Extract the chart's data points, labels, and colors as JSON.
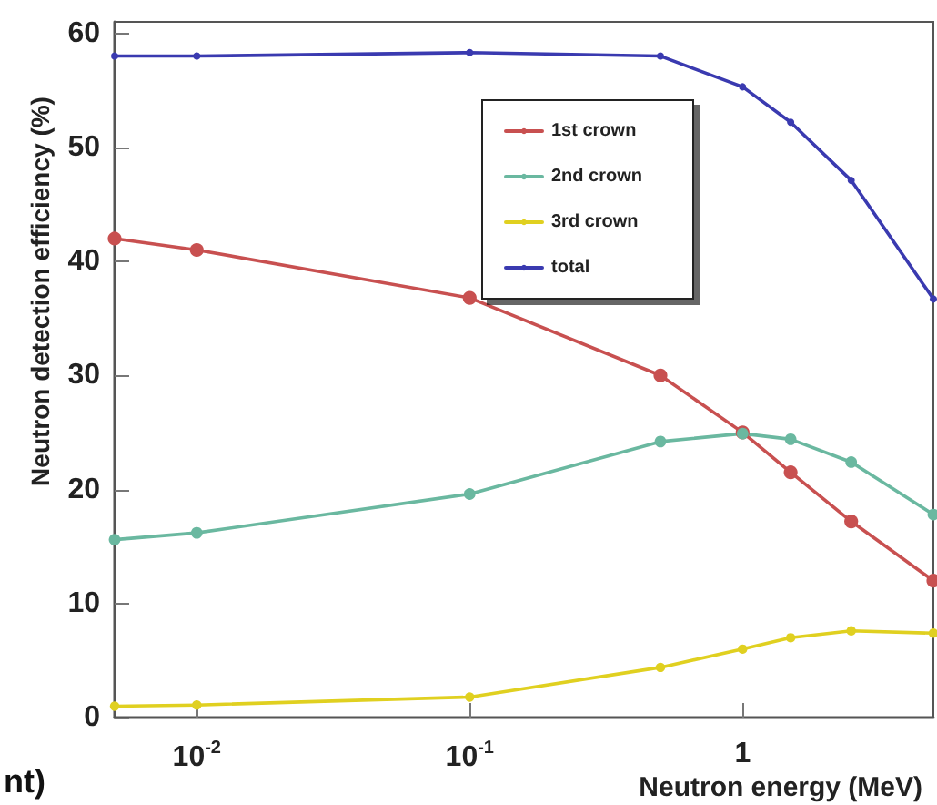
{
  "chart_data": {
    "type": "line",
    "xlabel": "Neutron energy (MeV)",
    "ylabel": "Neutron detection efficiency (%)",
    "annotations": [
      "nt)"
    ],
    "x": [
      0.005,
      0.01,
      0.1,
      0.5,
      1,
      1.5,
      2.5,
      5
    ],
    "series": [
      {
        "name": "1st crown",
        "color": "#c85050",
        "values": [
          42,
          41,
          36.8,
          30,
          25,
          21.5,
          17.2,
          12
        ]
      },
      {
        "name": "2nd crown",
        "color": "#6ab8a0",
        "values": [
          15.6,
          16.2,
          19.6,
          24.2,
          24.9,
          24.4,
          22.4,
          17.8
        ]
      },
      {
        "name": "3rd crown",
        "color": "#e0d020",
        "values": [
          1.0,
          1.1,
          1.8,
          4.4,
          6.0,
          7.0,
          7.6,
          7.4
        ]
      },
      {
        "name": "total",
        "color": "#3a3ab0",
        "values": [
          58,
          58,
          58.3,
          58,
          55.3,
          52.2,
          47.1,
          36.7
        ]
      }
    ],
    "log": "x",
    "xlim": [
      0.005,
      5
    ],
    "xticks": [
      {
        "value": 0.01,
        "label": "10$^{-2}$"
      },
      {
        "value": 0.1,
        "label": "10$^{-1}$"
      },
      1
    ],
    "ylim": [
      0,
      61
    ],
    "yticks": [
      0,
      10,
      20,
      30,
      40,
      50,
      60
    ],
    "grid": false,
    "legend": "top right",
    "marker": "circle",
    "line_style": "solid"
  }
}
